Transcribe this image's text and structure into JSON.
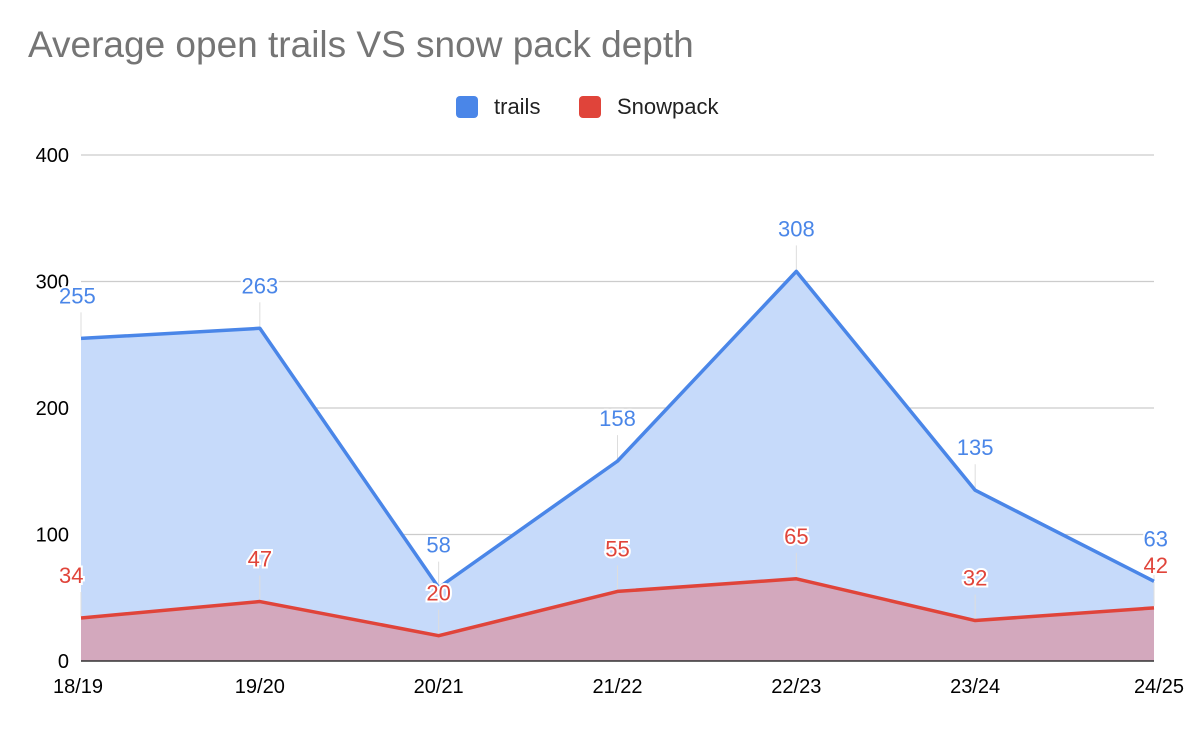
{
  "chart_data": {
    "type": "area",
    "title": "Average open trails VS snow pack depth",
    "categories": [
      "18/19",
      "19/20",
      "20/21",
      "21/22",
      "22/23",
      "23/24",
      "24/25"
    ],
    "series": [
      {
        "name": "trails",
        "values": [
          255,
          263,
          58,
          158,
          308,
          135,
          63
        ],
        "color": "#4a86e8",
        "fill": "#c6dafa"
      },
      {
        "name": "Snowpack",
        "values": [
          34,
          47,
          20,
          55,
          65,
          32,
          42
        ],
        "color": "#e0443a",
        "fill": "#d3a8bd"
      }
    ],
    "ylim": [
      0,
      400
    ],
    "yticks": [
      0,
      100,
      200,
      300,
      400
    ],
    "grid": true,
    "legend_position": "top",
    "data_labels": true
  }
}
